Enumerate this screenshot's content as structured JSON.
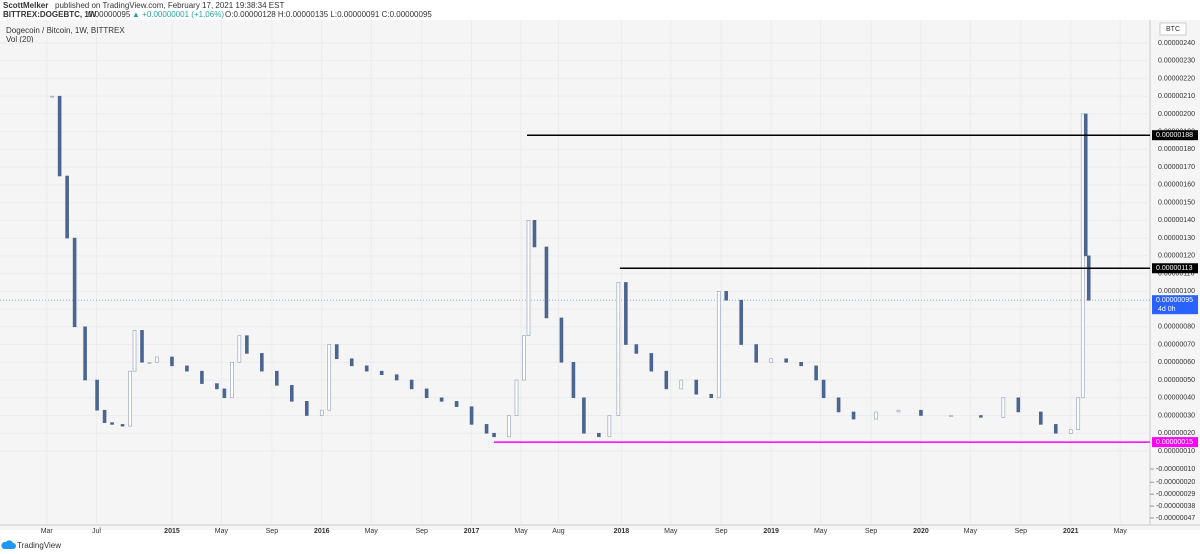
{
  "header": {
    "author": "ScottMelker",
    "published": "published on TradingView.com, February 17, 2021 19:38:34 EST",
    "symbol": "BITTREX:DOGEBTC, 1W",
    "last": "0.00000095",
    "change": "▲ +0.00000001 (+1.06%)",
    "ohlc": "O:0.00000128 H:0.00000135 L:0.00000091 C:0.00000095"
  },
  "chart_data": {
    "type": "candlestick",
    "title": "Dogecoin / Bitcoin, 1W, BITTREX",
    "volume_label": "Vol (20)",
    "currency": "BTC",
    "up_color": "#ffffff",
    "down_color": "#4a6591",
    "x": [
      2014.2,
      2014.25,
      2014.3,
      2014.35,
      2014.42,
      2014.5,
      2014.55,
      2014.6,
      2014.67,
      2014.72,
      2014.75,
      2014.8,
      2014.85,
      2014.9,
      2015.0,
      2015.1,
      2015.2,
      2015.3,
      2015.35,
      2015.4,
      2015.45,
      2015.5,
      2015.6,
      2015.7,
      2015.8,
      2015.9,
      2016.0,
      2016.05,
      2016.1,
      2016.2,
      2016.3,
      2016.4,
      2016.5,
      2016.6,
      2016.7,
      2016.8,
      2016.9,
      2017.0,
      2017.1,
      2017.15,
      2017.25,
      2017.3,
      2017.35,
      2017.38,
      2017.42,
      2017.5,
      2017.6,
      2017.68,
      2017.75,
      2017.85,
      2017.92,
      2017.98,
      2018.03,
      2018.1,
      2018.2,
      2018.3,
      2018.4,
      2018.5,
      2018.6,
      2018.65,
      2018.7,
      2018.8,
      2018.9,
      2019.0,
      2019.1,
      2019.2,
      2019.3,
      2019.35,
      2019.45,
      2019.55,
      2019.7,
      2019.85,
      2020.0,
      2020.2,
      2020.4,
      2020.55,
      2020.65,
      2020.8,
      2020.9,
      2021.0,
      2021.05,
      2021.08,
      2021.1,
      2021.12
    ],
    "values": [
      2.1e-06,
      1.65e-06,
      1.3e-06,
      8e-07,
      5e-07,
      3.3e-07,
      2.6e-07,
      2.5e-07,
      2.4e-07,
      5.5e-07,
      7.8e-07,
      6e-07,
      6e-07,
      6.3e-07,
      5.8e-07,
      5.5e-07,
      4.8e-07,
      4.5e-07,
      4e-07,
      6e-07,
      7.5e-07,
      6.5e-07,
      5.5e-07,
      4.7e-07,
      3.8e-07,
      3e-07,
      3.3e-07,
      7e-07,
      6.2e-07,
      5.8e-07,
      5.5e-07,
      5.3e-07,
      5e-07,
      4.5e-07,
      4e-07,
      3.8e-07,
      3.5e-07,
      2.5e-07,
      2e-07,
      1.8e-07,
      3e-07,
      5e-07,
      7.5e-07,
      1.4e-06,
      1.25e-06,
      8.5e-07,
      6e-07,
      4e-07,
      2e-07,
      1.8e-07,
      3e-07,
      1.05e-06,
      7e-07,
      6.5e-07,
      5.5e-07,
      4.5e-07,
      5e-07,
      4.2e-07,
      4e-07,
      1e-06,
      9.5e-07,
      7e-07,
      6e-07,
      6.2e-07,
      6e-07,
      5.8e-07,
      5e-07,
      4e-07,
      3.2e-07,
      2.8e-07,
      3.2e-07,
      3.3e-07,
      3e-07,
      3e-07,
      2.9e-07,
      4e-07,
      3.2e-07,
      2.5e-07,
      2e-07,
      2.2e-07,
      4e-07,
      2e-06,
      1.2e-06,
      9.5e-07
    ],
    "xlim": [
      2013.852,
      2021.529
    ],
    "xticks": [
      {
        "value": 2014.164,
        "label": "Mar"
      },
      {
        "value": 2014.496,
        "label": "Jul"
      },
      2015,
      {
        "value": 2015.33,
        "label": "May"
      },
      {
        "value": 2015.667,
        "label": "Sep"
      },
      2016,
      {
        "value": 2016.33,
        "label": "May"
      },
      {
        "value": 2016.667,
        "label": "Sep"
      },
      2017,
      {
        "value": 2017.33,
        "label": "May"
      },
      {
        "value": 2017.58,
        "label": "Aug"
      },
      2018,
      {
        "value": 2018.33,
        "label": "May"
      },
      {
        "value": 2018.667,
        "label": "Sep"
      },
      2019,
      {
        "value": 2019.33,
        "label": "May"
      },
      {
        "value": 2019.667,
        "label": "Sep"
      },
      2020,
      {
        "value": 2020.33,
        "label": "May"
      },
      {
        "value": 2020.667,
        "label": "Sep"
      },
      2021,
      {
        "value": 2021.33,
        "label": "May"
      }
    ],
    "ylim": [
      1e-07,
      2.5e-06
    ],
    "yticks": [
      {
        "value": 1e-07,
        "label": "0.00000010"
      },
      {
        "value": 2e-07,
        "label": "0.00000020"
      },
      {
        "value": 3e-07,
        "label": "0.00000030"
      },
      {
        "value": 4e-07,
        "label": "0.00000040"
      },
      {
        "value": 5e-07,
        "label": "0.00000050"
      },
      {
        "value": 6e-07,
        "label": "0.00000060"
      },
      {
        "value": 7e-07,
        "label": "0.00000070"
      },
      {
        "value": 8e-07,
        "label": "0.00000080"
      },
      {
        "value": 9e-07,
        "label": "0.00000090"
      },
      {
        "value": 1e-06,
        "label": "0.00000100"
      },
      {
        "value": 1.1e-06,
        "label": "0.00000110"
      },
      {
        "value": 1.2e-06,
        "label": "0.00000120"
      },
      {
        "value": 1.3e-06,
        "label": "0.00000130"
      },
      {
        "value": 1.4e-06,
        "label": "0.00000140"
      },
      {
        "value": 1.5e-06,
        "label": "0.00000150"
      },
      {
        "value": 1.6e-06,
        "label": "0.00000160"
      },
      {
        "value": 1.7e-06,
        "label": "0.00000170"
      },
      {
        "value": 1.8e-06,
        "label": "0.00000180"
      },
      {
        "value": 1.9e-06,
        "label": "0.00000190"
      },
      {
        "value": 2e-06,
        "label": "0.00000200"
      },
      {
        "value": 2.1e-06,
        "label": "0.00000210"
      },
      {
        "value": 2.2e-06,
        "label": "0.00000220"
      },
      {
        "value": 2.3e-06,
        "label": "0.00000230"
      },
      {
        "value": 2.4e-06,
        "label": "0.00000240"
      }
    ],
    "y2lim": [
      -5e-07,
      0
    ],
    "y2ticks": [
      {
        "value": -1e-07,
        "label": "-0.00000010"
      },
      {
        "value": -2e-07,
        "label": "-0.00000020"
      },
      {
        "value": -2.9e-07,
        "label": "-0.00000029"
      },
      {
        "value": -3.8e-07,
        "label": "-0.00000038"
      },
      {
        "value": -4.7e-07,
        "label": "-0.00000047"
      }
    ],
    "levels": [
      {
        "value": 1.88e-06,
        "label": "0.00000188",
        "start": 2017.37,
        "color": "#000000"
      },
      {
        "value": 1.13e-06,
        "label": "0.00000113",
        "start": 2017.99,
        "color": "#000000"
      },
      {
        "value": 1.5e-07,
        "label": "0.00000015",
        "start": 2017.15,
        "color": "#ff00ff"
      }
    ],
    "last_price": {
      "value": 9.5e-07,
      "label": "0.00000095",
      "color": "#2962ff",
      "countdown": "4d 0h"
    }
  },
  "footer": {
    "brand": "TradingView"
  }
}
